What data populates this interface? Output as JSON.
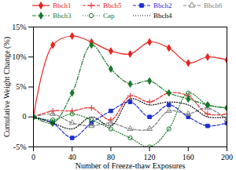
{
  "chart_data": {
    "type": "line",
    "x_label": "Number of Freeze-thaw Exposures",
    "y_label": "Cumulative Weight Change (%)",
    "x": [
      0,
      20,
      40,
      60,
      80,
      100,
      120,
      140,
      160,
      180,
      200
    ],
    "series": [
      {
        "name": "Bbch1",
        "color": "#e8231f",
        "marker": "diamond",
        "line_style": "solid",
        "values": [
          0,
          12,
          13.5,
          12.5,
          11,
          10.5,
          12.5,
          11.5,
          9,
          10,
          9.5
        ]
      },
      {
        "name": "Bbch5",
        "color": "#e8231f",
        "marker": "plus",
        "line_style": "dashed",
        "values": [
          0,
          1,
          1,
          1.5,
          -0.5,
          3.5,
          2.5,
          4,
          3.5,
          0.5,
          0.5
        ]
      },
      {
        "name": "Bbch2",
        "color": "#1f2fd0",
        "marker": "square",
        "line_style": "dashed",
        "values": [
          0,
          -1,
          -3.5,
          -1,
          1,
          2.5,
          0,
          2,
          0,
          -1.5,
          -1
        ]
      },
      {
        "name": "Bbch6",
        "color": "#808080",
        "marker": "triangle",
        "line_style": "dashed",
        "values": [
          0,
          0.5,
          -1,
          -1.5,
          -1,
          -2,
          -2,
          1,
          0.5,
          1.5,
          -0.5
        ]
      },
      {
        "name": "Bbch3",
        "color": "#1a7a2a",
        "marker": "diamond",
        "line_style": "dashdot",
        "values": [
          0,
          -1,
          4,
          12,
          8,
          5.5,
          6,
          4,
          3,
          2,
          1.5
        ]
      },
      {
        "name": "Cap",
        "color": "#1a7a2a",
        "marker": "circle",
        "line_style": "dotted",
        "values": [
          0,
          -0.5,
          0.5,
          -0.5,
          -2,
          -3.5,
          -5,
          -2,
          4,
          2,
          1.5
        ]
      },
      {
        "name": "Bbch4",
        "color": "#000000",
        "line_style": "dotted",
        "values": [
          0,
          -1,
          -2,
          0,
          -1.5,
          3,
          2,
          2.5,
          2,
          0,
          0
        ]
      }
    ],
    "xlim": [
      0,
      200
    ],
    "xticks": [
      0,
      40,
      80,
      120,
      160,
      200
    ],
    "ylim": [
      -5,
      15
    ],
    "yticks": [
      {
        "value": -5,
        "label": "-5%"
      },
      {
        "value": 0,
        "label": "0"
      },
      {
        "value": 5,
        "label": "5%"
      },
      {
        "value": 10,
        "label": "10%"
      },
      {
        "value": 15,
        "label": "15%"
      }
    ],
    "grid": false,
    "legend": "top"
  }
}
